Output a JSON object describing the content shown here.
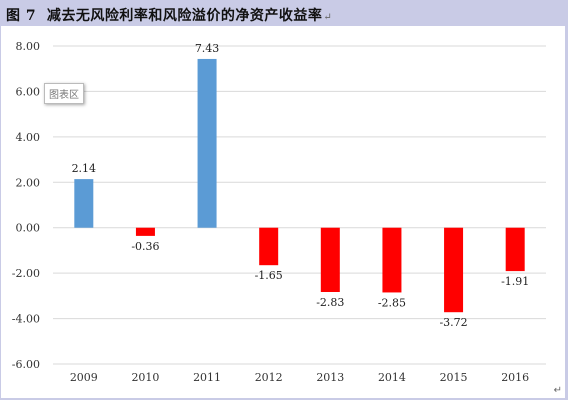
{
  "figure": {
    "number": "图 7",
    "title": "减去无风险利率和风险溢价的净资产收益率",
    "paragraph_mark": "↵",
    "area_tag": "图表区",
    "corner_mark": "↵"
  },
  "chart_data": {
    "type": "bar",
    "categories": [
      "2009",
      "2010",
      "2011",
      "2012",
      "2013",
      "2014",
      "2015",
      "2016"
    ],
    "values": [
      2.14,
      -0.36,
      7.43,
      -1.65,
      -2.83,
      -2.85,
      -3.72,
      -1.91
    ],
    "value_labels": [
      "2.14",
      "-0.36",
      "7.43",
      "-1.65",
      "-2.83",
      "-2.85",
      "-3.72",
      "-1.91"
    ],
    "ylim": [
      -6,
      8
    ],
    "yticks": [
      8,
      6,
      4,
      2,
      0,
      -2,
      -4,
      -6
    ],
    "ytick_labels": [
      "8.00",
      "6.00",
      "4.00",
      "2.00",
      "0.00",
      "-2.00",
      "-4.00",
      "-6.00"
    ],
    "grid": true,
    "colors": {
      "positive": "#5b9bd5",
      "negative": "#ff0000",
      "grid": "#d9d9d9"
    },
    "title": "",
    "xlabel": "",
    "ylabel": ""
  }
}
